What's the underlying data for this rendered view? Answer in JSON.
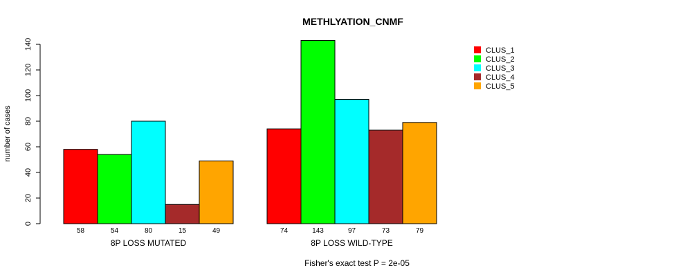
{
  "chart_data": {
    "type": "bar",
    "title": "METHLYATION_CNMF",
    "ylabel": "number of cases",
    "xlabel": "",
    "ylim": [
      0,
      140
    ],
    "yticks": [
      0,
      20,
      40,
      60,
      80,
      100,
      120,
      140
    ],
    "groups": [
      "8P LOSS MUTATED",
      "8P LOSS WILD-TYPE"
    ],
    "series": [
      {
        "name": "CLUS_1",
        "color": "#ff0000",
        "values": [
          58,
          74
        ]
      },
      {
        "name": "CLUS_2",
        "color": "#00ff00",
        "values": [
          54,
          143
        ]
      },
      {
        "name": "CLUS_3",
        "color": "#00ffff",
        "values": [
          80,
          97
        ]
      },
      {
        "name": "CLUS_4",
        "color": "#a52a2a",
        "values": [
          15,
          73
        ]
      },
      {
        "name": "CLUS_5",
        "color": "#ffa500",
        "values": [
          49,
          79
        ]
      }
    ],
    "legend_position": "top-right",
    "footnote": "Fisher's exact test P = 2e-05"
  }
}
